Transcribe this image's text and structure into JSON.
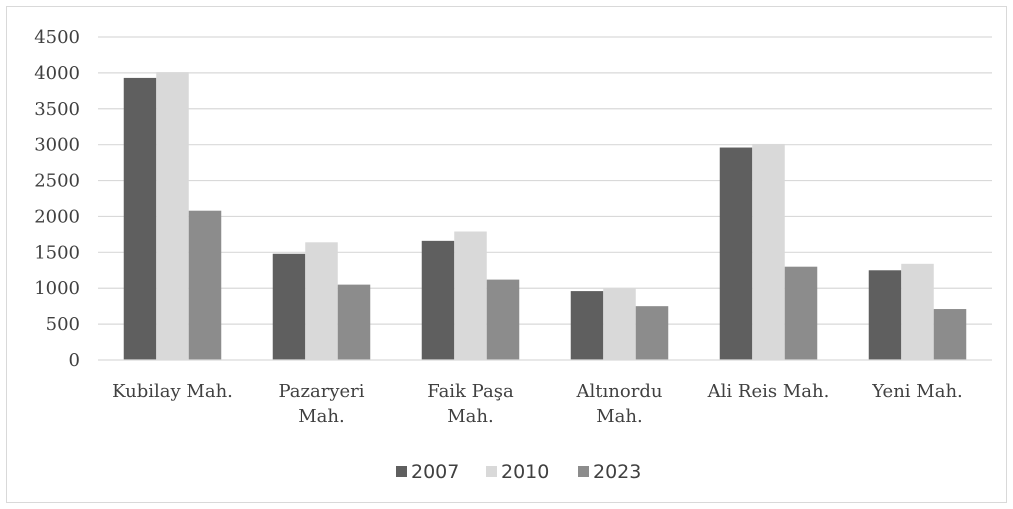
{
  "chart_data": {
    "type": "bar",
    "categories": [
      [
        "Kubilay Mah."
      ],
      [
        "Pazaryeri",
        "Mah."
      ],
      [
        "Faik Paşa",
        "Mah."
      ],
      [
        "Altınordu",
        "Mah."
      ],
      [
        "Ali Reis Mah."
      ],
      [
        "Yeni Mah."
      ]
    ],
    "series": [
      {
        "name": "2007",
        "color": "#5f5f5f",
        "values": [
          3930,
          1480,
          1660,
          960,
          2960,
          1250
        ]
      },
      {
        "name": "2010",
        "color": "#d9d9d9",
        "values": [
          4010,
          1640,
          1790,
          1000,
          3010,
          1340
        ]
      },
      {
        "name": "2023",
        "color": "#8c8c8c",
        "values": [
          2080,
          1050,
          1120,
          750,
          1300,
          710
        ]
      }
    ],
    "ylim": [
      0,
      4500
    ],
    "yticks": [
      0,
      500,
      1000,
      1500,
      2000,
      2500,
      3000,
      3500,
      4000,
      4500
    ],
    "grid": true,
    "legend_position": "bottom",
    "title": "",
    "xlabel": "",
    "ylabel": ""
  }
}
